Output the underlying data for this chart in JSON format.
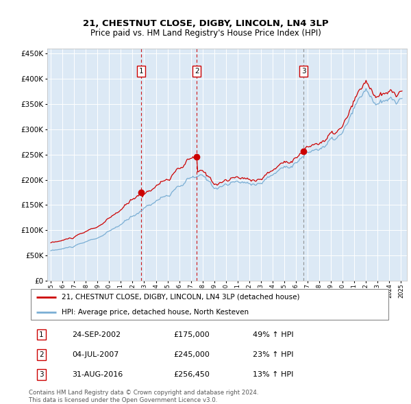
{
  "title": "21, CHESTNUT CLOSE, DIGBY, LINCOLN, LN4 3LP",
  "subtitle": "Price paid vs. HM Land Registry's House Price Index (HPI)",
  "legend_line1": "21, CHESTNUT CLOSE, DIGBY, LINCOLN, LN4 3LP (detached house)",
  "legend_line2": "HPI: Average price, detached house, North Kesteven",
  "footer1": "Contains HM Land Registry data © Crown copyright and database right 2024.",
  "footer2": "This data is licensed under the Open Government Licence v3.0.",
  "hpi_color": "#7aaed4",
  "price_color": "#cc0000",
  "background_color": "#dce9f5",
  "transactions": [
    {
      "num": 1,
      "date_num": 2002.73,
      "price": 175000,
      "label": "24-SEP-2002",
      "pct": "49%",
      "dir": "↑",
      "vline_style": "red_dashed"
    },
    {
      "num": 2,
      "date_num": 2007.5,
      "price": 245000,
      "label": "04-JUL-2007",
      "pct": "23%",
      "dir": "↑",
      "vline_style": "red_dashed"
    },
    {
      "num": 3,
      "date_num": 2016.66,
      "price": 256450,
      "label": "31-AUG-2016",
      "pct": "13%",
      "dir": "↑",
      "vline_style": "gray_dashdot"
    }
  ],
  "ylim": [
    0,
    460000
  ],
  "yticks": [
    0,
    50000,
    100000,
    150000,
    200000,
    250000,
    300000,
    350000,
    400000,
    450000
  ],
  "xlim_start": 1994.7,
  "xlim_end": 2025.5
}
